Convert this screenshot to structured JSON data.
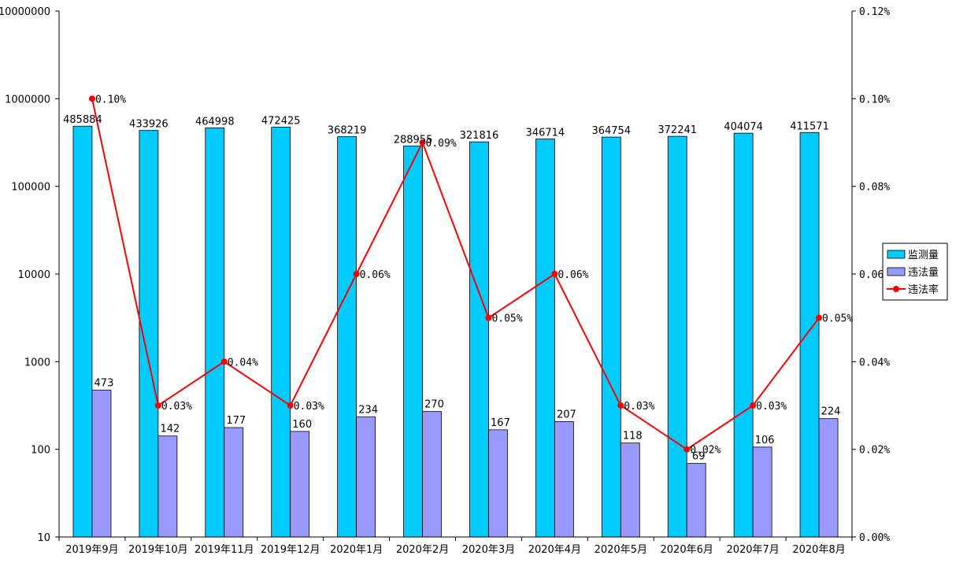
{
  "chart_data": {
    "type": "bar",
    "categories": [
      "2019年9月",
      "2019年10月",
      "2019年11月",
      "2019年12月",
      "2020年1月",
      "2020年2月",
      "2020年3月",
      "2020年4月",
      "2020年5月",
      "2020年6月",
      "2020年7月",
      "2020年8月"
    ],
    "series": [
      {
        "name": "监测量",
        "type": "bar",
        "axis": "left",
        "color": "#00ccff",
        "values": [
          485884,
          433926,
          464998,
          472425,
          368219,
          288955,
          321816,
          346714,
          364754,
          372241,
          404074,
          411571
        ]
      },
      {
        "name": "违法量",
        "type": "bar",
        "axis": "left",
        "color": "#9999ff",
        "values": [
          473,
          142,
          177,
          160,
          234,
          270,
          167,
          207,
          118,
          69,
          106,
          224
        ]
      },
      {
        "name": "违法率",
        "type": "line",
        "axis": "right",
        "color": "#ff0000",
        "values": [
          0.1,
          0.03,
          0.04,
          0.03,
          0.06,
          0.09,
          0.05,
          0.06,
          0.03,
          0.02,
          0.03,
          0.05
        ],
        "labels": [
          "0.10%",
          "0.03%",
          "0.04%",
          "0.03%",
          "0.06%",
          "0.09%",
          "0.05%",
          "0.06%",
          "0.03%",
          "0.02%",
          "0.03%",
          "0.05%"
        ]
      }
    ],
    "left_axis": {
      "scale": "log",
      "ylim": [
        10,
        10000000
      ],
      "tick_labels": [
        "10",
        "100",
        "1000",
        "10000",
        "100000",
        "1000000",
        "10000000"
      ]
    },
    "right_axis": {
      "scale": "linear",
      "ylim": [
        0,
        0.12
      ],
      "tick_labels": [
        "0.00%",
        "0.02%",
        "0.04%",
        "0.06%",
        "0.08%",
        "0.10%",
        "0.12%"
      ]
    },
    "legend": {
      "position": "right",
      "entries": [
        "监测量",
        "违法量",
        "违法率"
      ]
    },
    "grid": false
  }
}
